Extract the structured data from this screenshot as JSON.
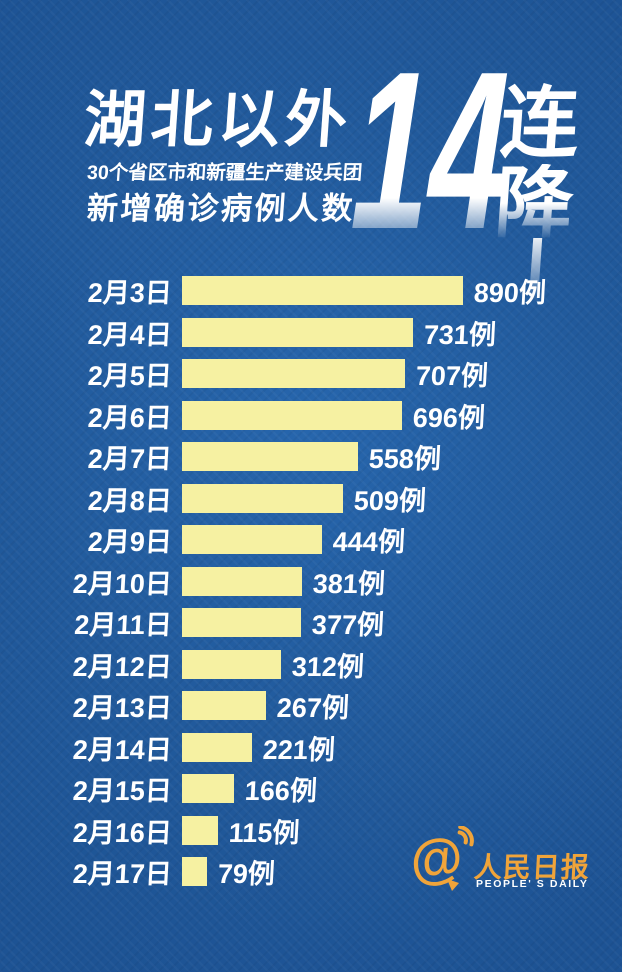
{
  "poster": {
    "header": {
      "title": "湖北以外",
      "subtitle_line1": "30个省区市和新疆生产建设兵团",
      "subtitle_line2": "新增确诊病例人数",
      "big_number": "14",
      "streak_char1": "连",
      "streak_char2": "降"
    },
    "footer_logo": {
      "at_symbol": "@",
      "name_cn": "人民日报",
      "name_en": "PEOPLE' S DAILY"
    }
  },
  "chart_data": {
    "type": "bar",
    "orientation": "horizontal",
    "title": "湖北以外（30个省区市和新疆生产建设兵团）新增确诊病例人数 14连降",
    "categories": [
      "2月3日",
      "2月4日",
      "2月5日",
      "2月6日",
      "2月7日",
      "2月8日",
      "2月9日",
      "2月10日",
      "2月11日",
      "2月12日",
      "2月13日",
      "2月14日",
      "2月15日",
      "2月16日",
      "2月17日"
    ],
    "values": [
      890,
      731,
      707,
      696,
      558,
      509,
      444,
      381,
      377,
      312,
      267,
      221,
      166,
      115,
      79
    ],
    "unit": "例",
    "xlim": [
      0,
      890
    ],
    "grid": false,
    "legend": false,
    "bar_color": "#f6f1a2",
    "label_color": "#ffffff",
    "background_color": "#215a9c"
  },
  "colors": {
    "background": "#215a9c",
    "bar": "#f6f1a2",
    "text": "#ffffff",
    "logo_orange": "#f0a43a"
  }
}
